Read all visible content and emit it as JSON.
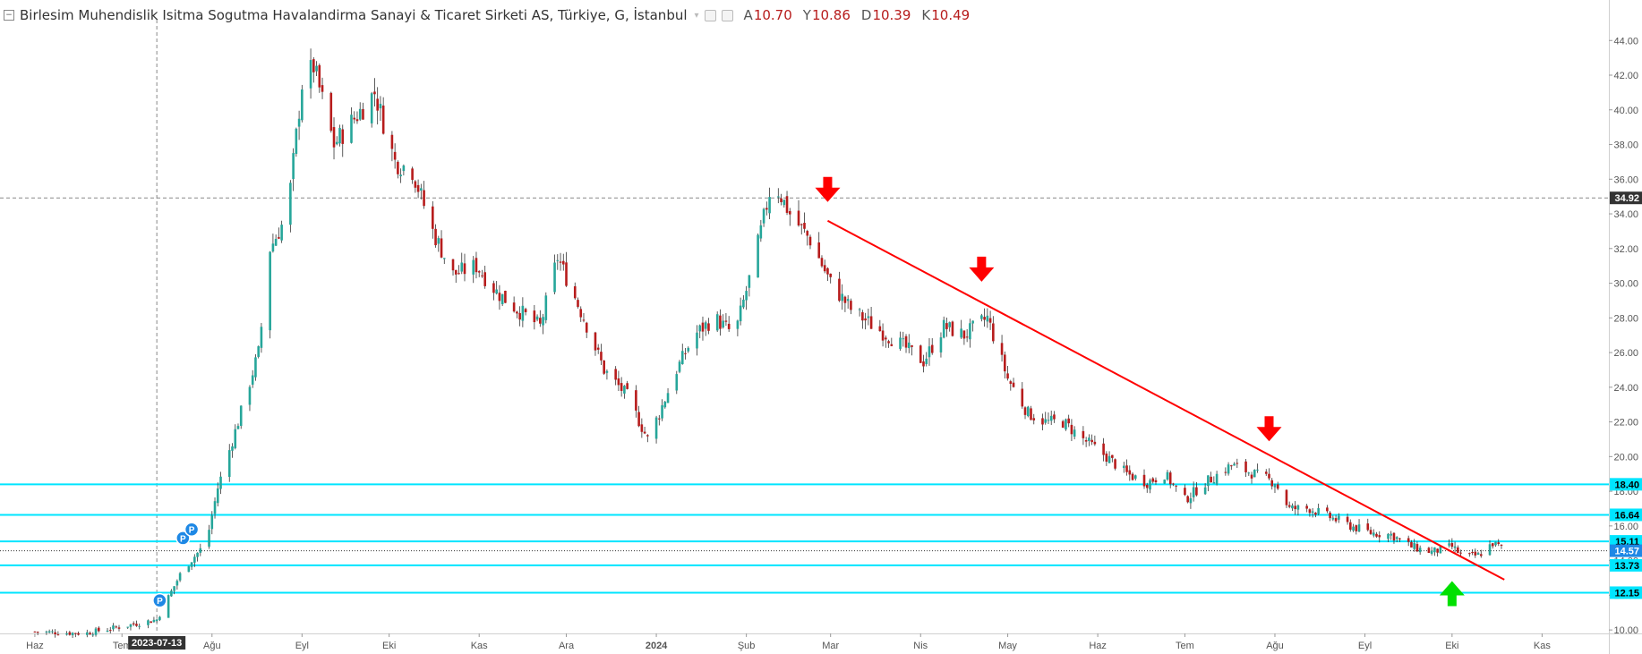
{
  "header": {
    "symbol_title": "Birlesim Muhendislik Isitma Sogutma Havalandirma Sanayi & Ticaret Sirketi AS, Türkiye, G, İstanbul",
    "ohlc": [
      {
        "label": "A",
        "value": "10.70"
      },
      {
        "label": "Y",
        "value": "10.86"
      },
      {
        "label": "D",
        "value": "10.39"
      },
      {
        "label": "K",
        "value": "10.49"
      }
    ],
    "toggle_glyph": "−"
  },
  "colors": {
    "up": "#26a69a",
    "down": "#b71c1c",
    "trendline": "#ff0000",
    "levels": "#00e5ff",
    "arrow_down": "#ff0000",
    "arrow_up": "#00e000",
    "marker": "#1e88e5",
    "axis_text": "#555555"
  },
  "icons": [
    "collapse-toggle-icon",
    "chevron-down-icon",
    "settings-square-icon",
    "eye-square-icon",
    "down-arrow-icon",
    "up-arrow-icon",
    "p-marker-icon"
  ],
  "chart_data": {
    "type": "candlestick",
    "title": "Birlesim Muhendislik Isitma Sogutma Havalandirma Sanayi & Ticaret Sirketi AS, Türkiye, G, İstanbul",
    "ylim": [
      9.8,
      45.2
    ],
    "y_ticks": [
      "10.00",
      "12.00",
      "14.00",
      "16.00",
      "18.00",
      "20.00",
      "22.00",
      "24.00",
      "26.00",
      "28.00",
      "30.00",
      "32.00",
      "34.00",
      "36.00",
      "38.00",
      "40.00",
      "42.00",
      "44.00"
    ],
    "x_labels": [
      {
        "label": "Haz",
        "date": "2023-06-01"
      },
      {
        "label": "Tem",
        "date": "2023-07-01"
      },
      {
        "label": "Ağu",
        "date": "2023-08-01"
      },
      {
        "label": "Eyl",
        "date": "2023-09-01"
      },
      {
        "label": "Eki",
        "date": "2023-10-01"
      },
      {
        "label": "Kas",
        "date": "2023-11-01"
      },
      {
        "label": "Ara",
        "date": "2023-12-01"
      },
      {
        "label": "2024",
        "date": "2024-01-01"
      },
      {
        "label": "Şub",
        "date": "2024-02-01"
      },
      {
        "label": "Mar",
        "date": "2024-03-01"
      },
      {
        "label": "Nis",
        "date": "2024-04-01"
      },
      {
        "label": "May",
        "date": "2024-05-01"
      },
      {
        "label": "Haz",
        "date": "2024-06-01"
      },
      {
        "label": "Tem",
        "date": "2024-07-01"
      },
      {
        "label": "Ağu",
        "date": "2024-08-01"
      },
      {
        "label": "Eyl",
        "date": "2024-09-01"
      },
      {
        "label": "Eki",
        "date": "2024-10-01"
      },
      {
        "label": "Kas",
        "date": "2024-11-01"
      }
    ],
    "crosshair": {
      "date_label": "2023-07-13",
      "date": "2023-07-13",
      "price_label": "34.92",
      "price": 34.92
    },
    "last_price": {
      "label": "14.57",
      "value": 14.57
    },
    "horizontal_levels": [
      {
        "label": "18.40",
        "value": 18.4
      },
      {
        "label": "16.64",
        "value": 16.64
      },
      {
        "label": "15.11",
        "value": 15.11
      },
      {
        "label": "13.73",
        "value": 13.73
      },
      {
        "label": "12.15",
        "value": 12.15
      }
    ],
    "trendline": {
      "start": {
        "date": "2024-02-29",
        "value": 33.6
      },
      "end": {
        "date": "2024-10-19",
        "value": 12.9
      }
    },
    "arrows": [
      {
        "direction": "down",
        "date": "2024-02-29",
        "value": 35.2
      },
      {
        "direction": "down",
        "date": "2024-04-22",
        "value": 30.6
      },
      {
        "direction": "down",
        "date": "2024-07-30",
        "value": 21.4
      },
      {
        "direction": "up",
        "date": "2024-10-01",
        "value": 12.3
      }
    ],
    "markers": [
      {
        "label": "P",
        "date": "2023-07-14",
        "value": 11.7
      },
      {
        "label": "P",
        "date": "2023-07-22",
        "value": 15.3
      },
      {
        "label": "P",
        "date": "2023-07-25",
        "value": 15.8
      }
    ],
    "anchors": [
      {
        "date": "2023-06-01",
        "value": 9.9
      },
      {
        "date": "2023-06-18",
        "value": 9.8
      },
      {
        "date": "2023-07-01",
        "value": 10.2
      },
      {
        "date": "2023-07-13",
        "value": 10.6
      },
      {
        "date": "2023-07-22",
        "value": 13.5
      },
      {
        "date": "2023-07-30",
        "value": 15.0
      },
      {
        "date": "2023-08-03",
        "value": 18.2
      },
      {
        "date": "2023-08-10",
        "value": 22.0
      },
      {
        "date": "2023-08-17",
        "value": 26.0
      },
      {
        "date": "2023-08-21",
        "value": 32.0
      },
      {
        "date": "2023-08-27",
        "value": 34.0
      },
      {
        "date": "2023-09-01",
        "value": 41.5
      },
      {
        "date": "2023-09-05",
        "value": 42.5
      },
      {
        "date": "2023-09-12",
        "value": 38.0
      },
      {
        "date": "2023-09-19",
        "value": 39.5
      },
      {
        "date": "2023-09-26",
        "value": 41.0
      },
      {
        "date": "2023-10-03",
        "value": 37.0
      },
      {
        "date": "2023-10-09",
        "value": 36.5
      },
      {
        "date": "2023-10-16",
        "value": 33.0
      },
      {
        "date": "2023-10-23",
        "value": 30.5
      },
      {
        "date": "2023-10-31",
        "value": 31.0
      },
      {
        "date": "2023-11-07",
        "value": 29.5
      },
      {
        "date": "2023-11-14",
        "value": 28.5
      },
      {
        "date": "2023-11-22",
        "value": 27.5
      },
      {
        "date": "2023-11-28",
        "value": 31.5
      },
      {
        "date": "2023-12-07",
        "value": 28.0
      },
      {
        "date": "2023-12-14",
        "value": 25.0
      },
      {
        "date": "2023-12-22",
        "value": 23.5
      },
      {
        "date": "2023-12-29",
        "value": 21.0
      },
      {
        "date": "2024-01-02",
        "value": 22.5
      },
      {
        "date": "2024-01-08",
        "value": 25.0
      },
      {
        "date": "2024-01-14",
        "value": 27.0
      },
      {
        "date": "2024-01-21",
        "value": 28.0
      },
      {
        "date": "2024-01-28",
        "value": 27.0
      },
      {
        "date": "2024-02-04",
        "value": 31.5
      },
      {
        "date": "2024-02-10",
        "value": 36.0
      },
      {
        "date": "2024-02-16",
        "value": 34.0
      },
      {
        "date": "2024-02-23",
        "value": 32.5
      },
      {
        "date": "2024-03-01",
        "value": 30.0
      },
      {
        "date": "2024-03-08",
        "value": 28.5
      },
      {
        "date": "2024-03-16",
        "value": 27.5
      },
      {
        "date": "2024-03-25",
        "value": 26.5
      },
      {
        "date": "2024-04-02",
        "value": 25.5
      },
      {
        "date": "2024-04-09",
        "value": 27.5
      },
      {
        "date": "2024-04-16",
        "value": 27.0
      },
      {
        "date": "2024-04-24",
        "value": 28.0
      },
      {
        "date": "2024-05-01",
        "value": 24.5
      },
      {
        "date": "2024-05-08",
        "value": 22.5
      },
      {
        "date": "2024-05-14",
        "value": 22.0
      },
      {
        "date": "2024-05-20",
        "value": 22.0
      },
      {
        "date": "2024-05-27",
        "value": 21.0
      },
      {
        "date": "2024-06-04",
        "value": 20.0
      },
      {
        "date": "2024-06-11",
        "value": 19.0
      },
      {
        "date": "2024-06-18",
        "value": 18.5
      },
      {
        "date": "2024-06-24",
        "value": 19.0
      },
      {
        "date": "2024-07-01",
        "value": 17.5
      },
      {
        "date": "2024-07-08",
        "value": 18.5
      },
      {
        "date": "2024-07-17",
        "value": 19.5
      },
      {
        "date": "2024-07-25",
        "value": 19.0
      },
      {
        "date": "2024-08-01",
        "value": 18.5
      },
      {
        "date": "2024-08-06",
        "value": 17.0
      },
      {
        "date": "2024-08-13",
        "value": 17.0
      },
      {
        "date": "2024-08-20",
        "value": 16.5
      },
      {
        "date": "2024-08-27",
        "value": 16.0
      },
      {
        "date": "2024-09-03",
        "value": 15.6
      },
      {
        "date": "2024-09-10",
        "value": 15.5
      },
      {
        "date": "2024-09-17",
        "value": 14.8
      },
      {
        "date": "2024-09-24",
        "value": 14.5
      },
      {
        "date": "2024-10-01",
        "value": 14.8
      },
      {
        "date": "2024-10-05",
        "value": 14.2
      },
      {
        "date": "2024-10-10",
        "value": 14.3
      },
      {
        "date": "2024-10-15",
        "value": 15.0
      },
      {
        "date": "2024-10-20",
        "value": 14.57
      }
    ],
    "grid": false,
    "note_on_anchors": ""
  }
}
